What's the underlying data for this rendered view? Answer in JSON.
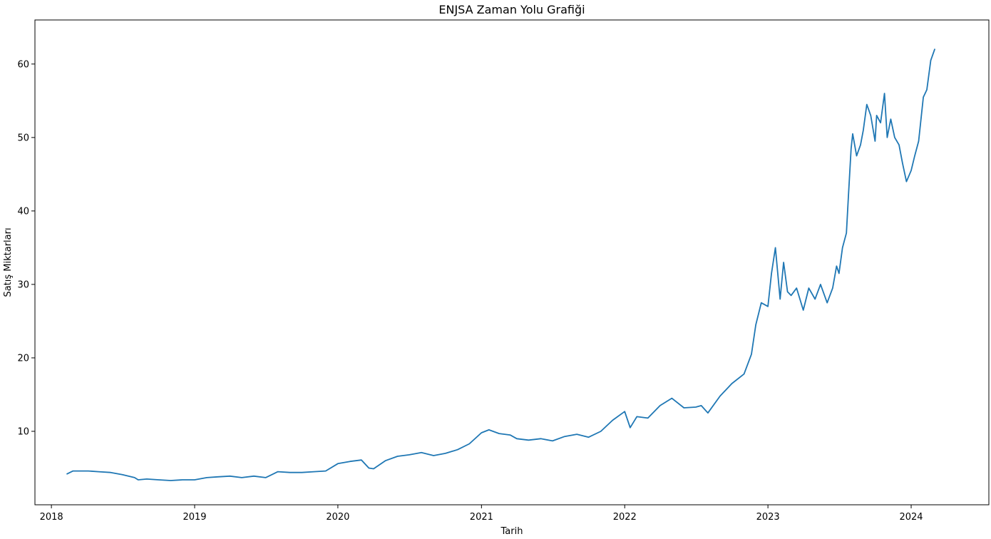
{
  "chart_data": {
    "type": "line",
    "title": "ENJSA Zaman Yolu Grafiği",
    "xlabel": "Tarih",
    "ylabel": "Satış Miktarları",
    "x_ticks": [
      "2018",
      "2019",
      "2020",
      "2021",
      "2022",
      "2023",
      "2024"
    ],
    "y_ticks": [
      10,
      20,
      30,
      40,
      50,
      60
    ],
    "xlim": [
      "2017-11-20",
      "2024-07-17"
    ],
    "ylim": [
      0,
      66
    ],
    "grid": false,
    "colors": {
      "line": "#1f77b4"
    },
    "series": [
      {
        "x": [
          "2018-02-10",
          "2018-02-25",
          "2018-03-15",
          "2018-04-05",
          "2018-05-01",
          "2018-06-01",
          "2018-07-01",
          "2018-08-01",
          "2018-08-10",
          "2018-09-01",
          "2018-10-01",
          "2018-11-01",
          "2018-12-01",
          "2019-01-01",
          "2019-02-01",
          "2019-03-01",
          "2019-04-01",
          "2019-05-01",
          "2019-06-01",
          "2019-07-01",
          "2019-08-01",
          "2019-09-01",
          "2019-10-01",
          "2019-11-01",
          "2019-12-01",
          "2020-01-01",
          "2020-02-01",
          "2020-03-01",
          "2020-03-20",
          "2020-04-01",
          "2020-05-01",
          "2020-06-01",
          "2020-07-01",
          "2020-08-01",
          "2020-09-01",
          "2020-10-01",
          "2020-11-01",
          "2020-12-01",
          "2021-01-01",
          "2021-01-20",
          "2021-02-15",
          "2021-03-15",
          "2021-04-01",
          "2021-05-01",
          "2021-06-01",
          "2021-07-01",
          "2021-08-01",
          "2021-09-01",
          "2021-10-01",
          "2021-11-01",
          "2021-12-01",
          "2022-01-01",
          "2022-01-15",
          "2022-02-01",
          "2022-03-01",
          "2022-04-01",
          "2022-05-01",
          "2022-06-01",
          "2022-07-01",
          "2022-07-15",
          "2022-08-01",
          "2022-09-01",
          "2022-10-01",
          "2022-11-01",
          "2022-11-20",
          "2022-12-01",
          "2022-12-15",
          "2023-01-01",
          "2023-01-10",
          "2023-01-20",
          "2023-02-01",
          "2023-02-10",
          "2023-02-20",
          "2023-03-01",
          "2023-03-15",
          "2023-04-01",
          "2023-04-15",
          "2023-05-01",
          "2023-05-15",
          "2023-06-01",
          "2023-06-15",
          "2023-06-25",
          "2023-07-01",
          "2023-07-10",
          "2023-07-20",
          "2023-07-25",
          "2023-08-01",
          "2023-08-05",
          "2023-08-15",
          "2023-08-25",
          "2023-09-01",
          "2023-09-10",
          "2023-09-20",
          "2023-10-01",
          "2023-10-05",
          "2023-10-15",
          "2023-10-25",
          "2023-11-01",
          "2023-11-10",
          "2023-11-20",
          "2023-12-01",
          "2023-12-10",
          "2023-12-20",
          "2024-01-01",
          "2024-01-10",
          "2024-01-20",
          "2024-02-01",
          "2024-02-10",
          "2024-02-20",
          "2024-03-01"
        ],
        "values": [
          4.2,
          4.6,
          4.6,
          4.6,
          4.5,
          4.4,
          4.1,
          3.7,
          3.4,
          3.5,
          3.4,
          3.3,
          3.4,
          3.4,
          3.7,
          3.8,
          3.9,
          3.7,
          3.9,
          3.7,
          4.5,
          4.4,
          4.4,
          4.5,
          4.6,
          5.6,
          5.9,
          6.1,
          5.0,
          4.9,
          6.0,
          6.6,
          6.8,
          7.1,
          6.7,
          7.0,
          7.5,
          8.3,
          9.8,
          10.2,
          9.7,
          9.5,
          9.0,
          8.8,
          9.0,
          8.7,
          9.3,
          9.6,
          9.2,
          10.0,
          11.5,
          12.7,
          10.5,
          12.0,
          11.8,
          13.5,
          14.5,
          13.2,
          13.3,
          13.5,
          12.5,
          14.8,
          16.5,
          17.8,
          20.5,
          24.5,
          27.5,
          27.0,
          31.5,
          35.0,
          28.0,
          33.0,
          29.0,
          28.5,
          29.5,
          26.5,
          29.5,
          28.0,
          30.0,
          27.5,
          29.5,
          32.5,
          31.5,
          35.0,
          37.0,
          42.0,
          48.5,
          50.5,
          47.5,
          49.0,
          51.0,
          54.5,
          53.0,
          49.5,
          53.0,
          52.0,
          56.0,
          50.0,
          52.5,
          50.0,
          49.0,
          46.5,
          44.0,
          45.5,
          47.5,
          49.5,
          55.5,
          56.5,
          60.5,
          62.0
        ]
      }
    ]
  }
}
